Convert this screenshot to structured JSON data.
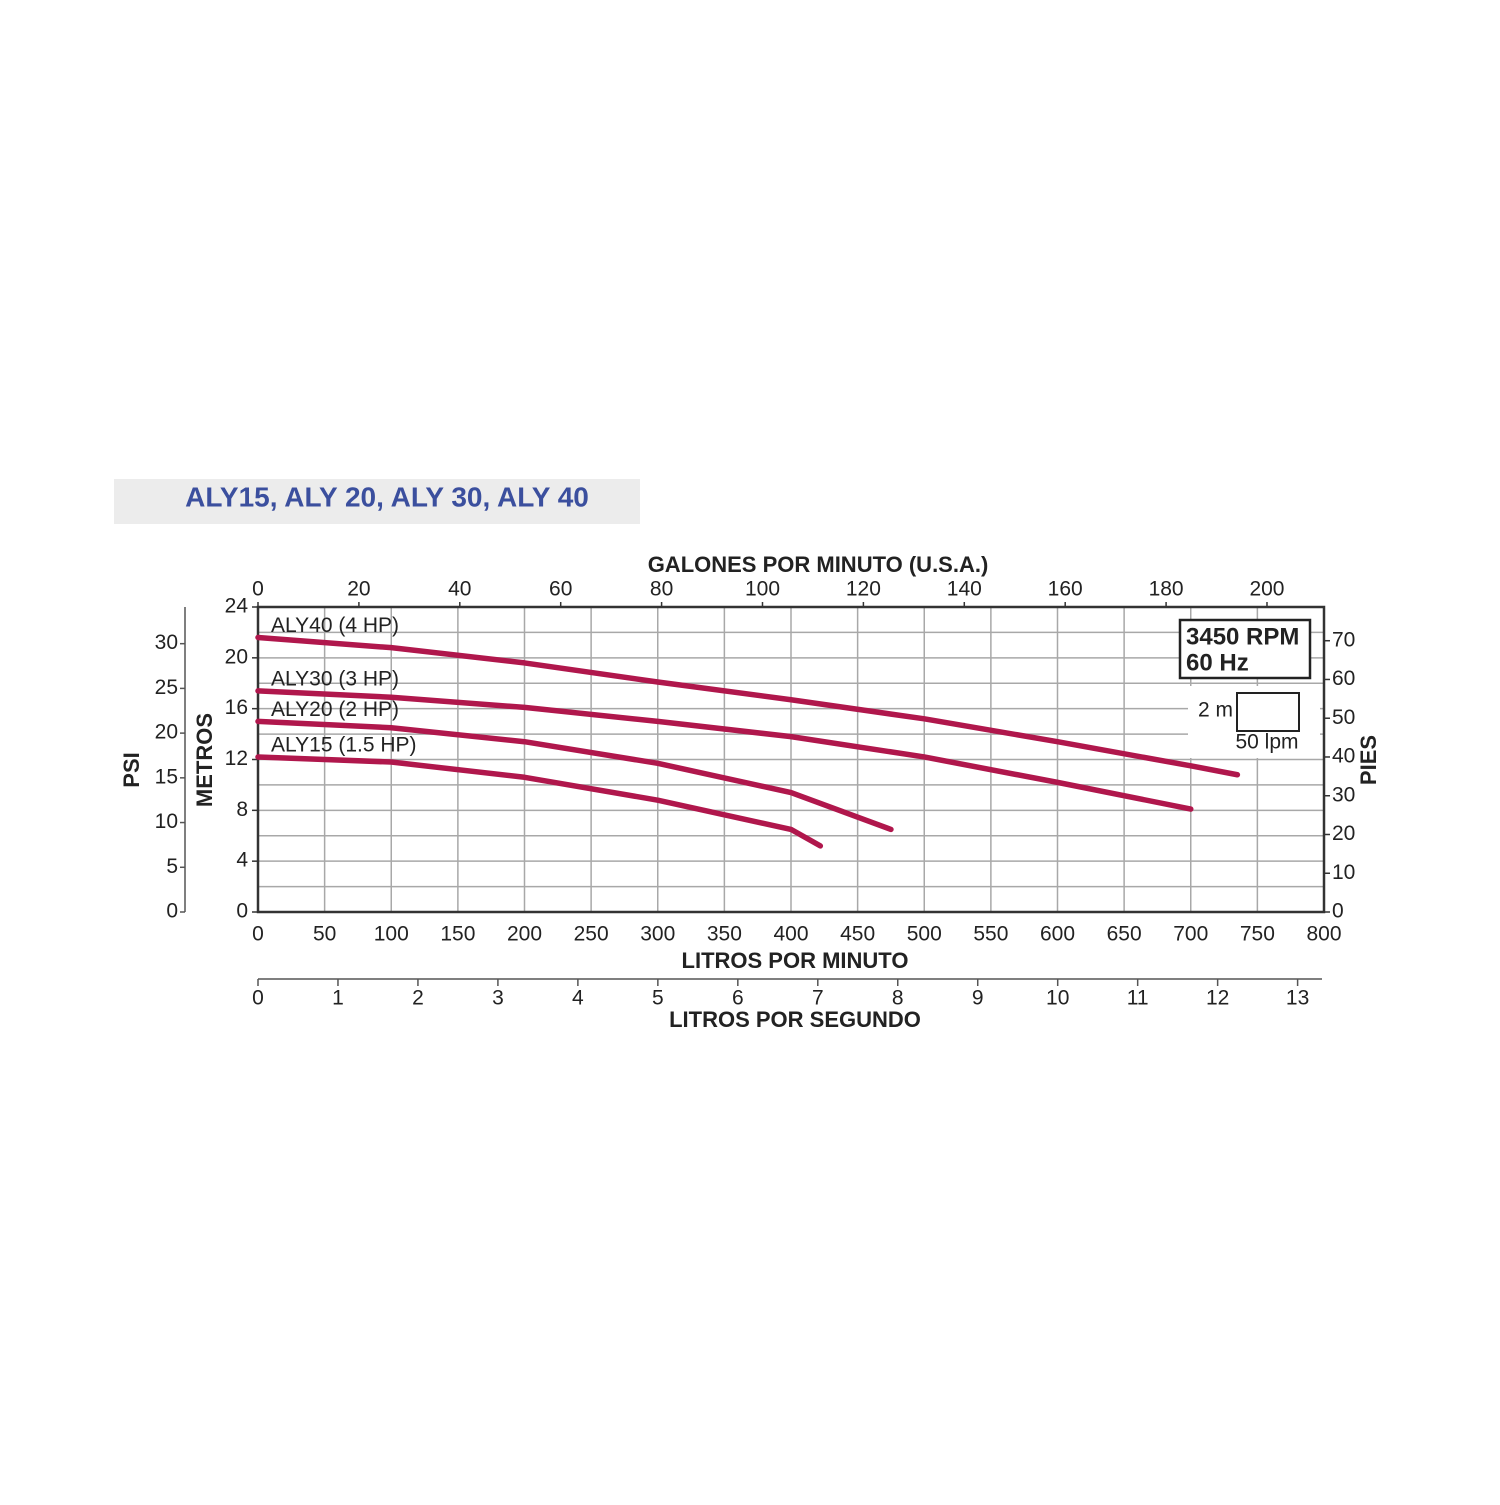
{
  "chart_data": {
    "type": "line",
    "title": "ALY15, ALY 20, ALY 30, ALY 40",
    "xlabel": "LITROS POR MINUTO",
    "ylabel": "METROS",
    "xlim": [
      0,
      800
    ],
    "xticks": [
      0,
      50,
      100,
      150,
      200,
      250,
      300,
      350,
      400,
      450,
      500,
      550,
      600,
      650,
      700,
      750,
      800
    ],
    "ylim": [
      0,
      24
    ],
    "yticks": [
      0,
      4,
      8,
      12,
      16,
      20,
      24
    ],
    "ygrid": [
      0,
      2,
      4,
      6,
      8,
      10,
      12,
      14,
      16,
      18,
      20,
      22,
      24
    ],
    "grid": true,
    "x2label": "GALONES POR MINUTO (U.S.A.)",
    "x2lim": [
      0,
      211.3
    ],
    "x2ticks": [
      0,
      20,
      40,
      60,
      80,
      100,
      120,
      140,
      160,
      180,
      200
    ],
    "x3label": "LITROS POR SEGUNDO",
    "x3lim": [
      0,
      13.33
    ],
    "x3ticks": [
      0,
      1,
      2,
      3,
      4,
      5,
      6,
      7,
      8,
      9,
      10,
      11,
      12,
      13
    ],
    "y2label": "PSI",
    "y2lim": [
      0,
      34.1
    ],
    "y2ticks": [
      0,
      5,
      10,
      15,
      20,
      25,
      30
    ],
    "y3label": "PIES",
    "y3lim": [
      0,
      78.7
    ],
    "y3ticks": [
      0,
      10,
      20,
      30,
      40,
      50,
      60,
      70
    ],
    "annotations": [
      "3450 RPM",
      "60 Hz"
    ],
    "scale_box": {
      "height_label": "2 m",
      "width_label": "50 lpm"
    },
    "series": [
      {
        "name": "ALY40 (4 HP)",
        "color": "#b0174c",
        "x": [
          0,
          100,
          200,
          300,
          400,
          500,
          600,
          700,
          735
        ],
        "values": [
          21.6,
          20.8,
          19.6,
          18.1,
          16.7,
          15.2,
          13.4,
          11.5,
          10.8
        ]
      },
      {
        "name": "ALY30 (3 HP)",
        "color": "#b0174c",
        "x": [
          0,
          100,
          200,
          300,
          400,
          500,
          600,
          700
        ],
        "values": [
          17.4,
          16.9,
          16.1,
          15.0,
          13.8,
          12.2,
          10.2,
          8.1
        ]
      },
      {
        "name": "ALY20 (2 HP)",
        "color": "#b0174c",
        "x": [
          0,
          100,
          200,
          300,
          400,
          475
        ],
        "values": [
          15.0,
          14.5,
          13.4,
          11.7,
          9.4,
          6.5
        ]
      },
      {
        "name": "ALY15 (1.5 HP)",
        "color": "#b0174c",
        "x": [
          0,
          100,
          200,
          300,
          400,
          422
        ],
        "values": [
          12.2,
          11.8,
          10.6,
          8.8,
          6.5,
          5.2
        ]
      }
    ]
  }
}
